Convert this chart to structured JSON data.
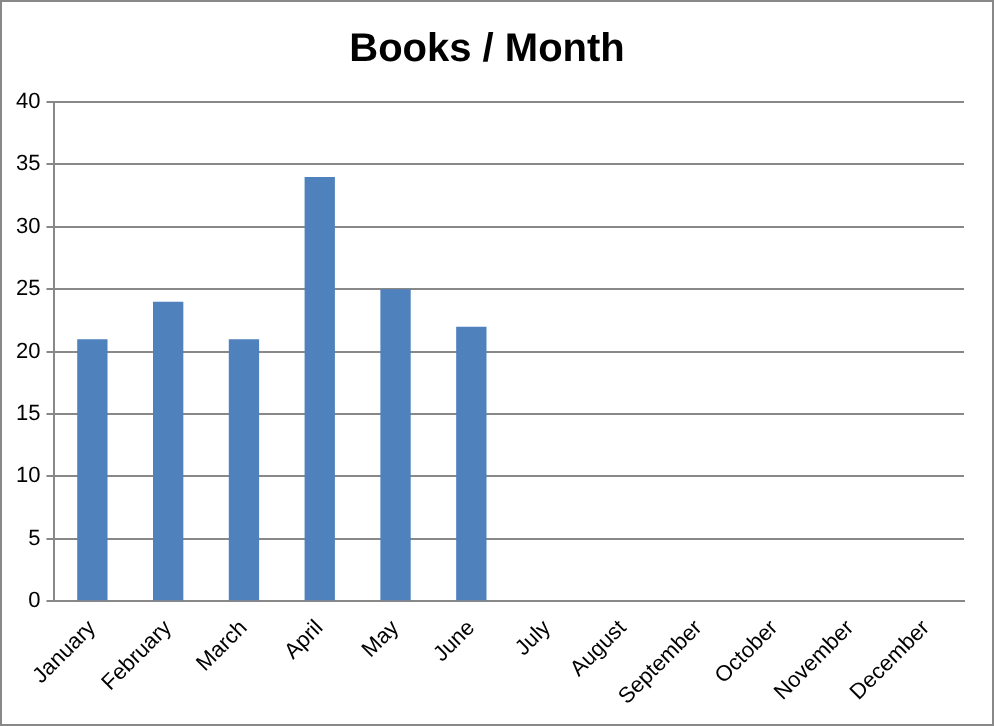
{
  "chart_data": {
    "type": "bar",
    "title": "Books / Month",
    "categories": [
      "January",
      "February",
      "March",
      "April",
      "May",
      "June",
      "July",
      "August",
      "September",
      "October",
      "November",
      "December"
    ],
    "values": [
      21,
      24,
      21,
      34,
      25,
      22,
      null,
      null,
      null,
      null,
      null,
      null
    ],
    "color": "#4f81bd",
    "ylim": [
      0,
      40
    ],
    "yticks": [
      0,
      5,
      10,
      15,
      20,
      25,
      30,
      35,
      40
    ],
    "grid": "y",
    "legend": false
  }
}
